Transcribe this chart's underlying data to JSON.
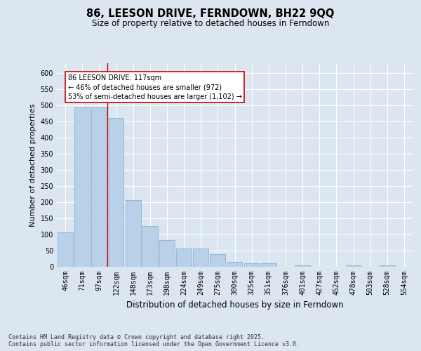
{
  "title": "86, LEESON DRIVE, FERNDOWN, BH22 9QQ",
  "subtitle": "Size of property relative to detached houses in Ferndown",
  "xlabel": "Distribution of detached houses by size in Ferndown",
  "ylabel": "Number of detached properties",
  "categories": [
    "46sqm",
    "71sqm",
    "97sqm",
    "122sqm",
    "148sqm",
    "173sqm",
    "198sqm",
    "224sqm",
    "249sqm",
    "275sqm",
    "300sqm",
    "325sqm",
    "351sqm",
    "376sqm",
    "401sqm",
    "427sqm",
    "452sqm",
    "478sqm",
    "503sqm",
    "528sqm",
    "554sqm"
  ],
  "values": [
    107,
    493,
    493,
    460,
    207,
    125,
    83,
    57,
    57,
    40,
    15,
    10,
    10,
    0,
    5,
    0,
    0,
    5,
    0,
    5,
    0
  ],
  "bar_color": "#b8d0e8",
  "bar_edge_color": "#7aadd0",
  "bar_linewidth": 0.5,
  "redline_x": 2.5,
  "annotation_text": "86 LEESON DRIVE: 117sqm\n← 46% of detached houses are smaller (972)\n53% of semi-detached houses are larger (1,102) →",
  "annotation_box_color": "#ffffff",
  "annotation_box_edge": "#cc0000",
  "annotation_text_color": "#000000",
  "redline_color": "#cc0000",
  "ylim": [
    0,
    630
  ],
  "yticks": [
    0,
    50,
    100,
    150,
    200,
    250,
    300,
    350,
    400,
    450,
    500,
    550,
    600
  ],
  "background_color": "#dce6f0",
  "plot_bg_color": "#dce6f0",
  "footer": "Contains HM Land Registry data © Crown copyright and database right 2025.\nContains public sector information licensed under the Open Government Licence v3.0.",
  "title_fontsize": 10.5,
  "subtitle_fontsize": 8.5,
  "xlabel_fontsize": 8.5,
  "ylabel_fontsize": 8,
  "tick_fontsize": 7,
  "footer_fontsize": 6,
  "annot_fontsize": 7
}
